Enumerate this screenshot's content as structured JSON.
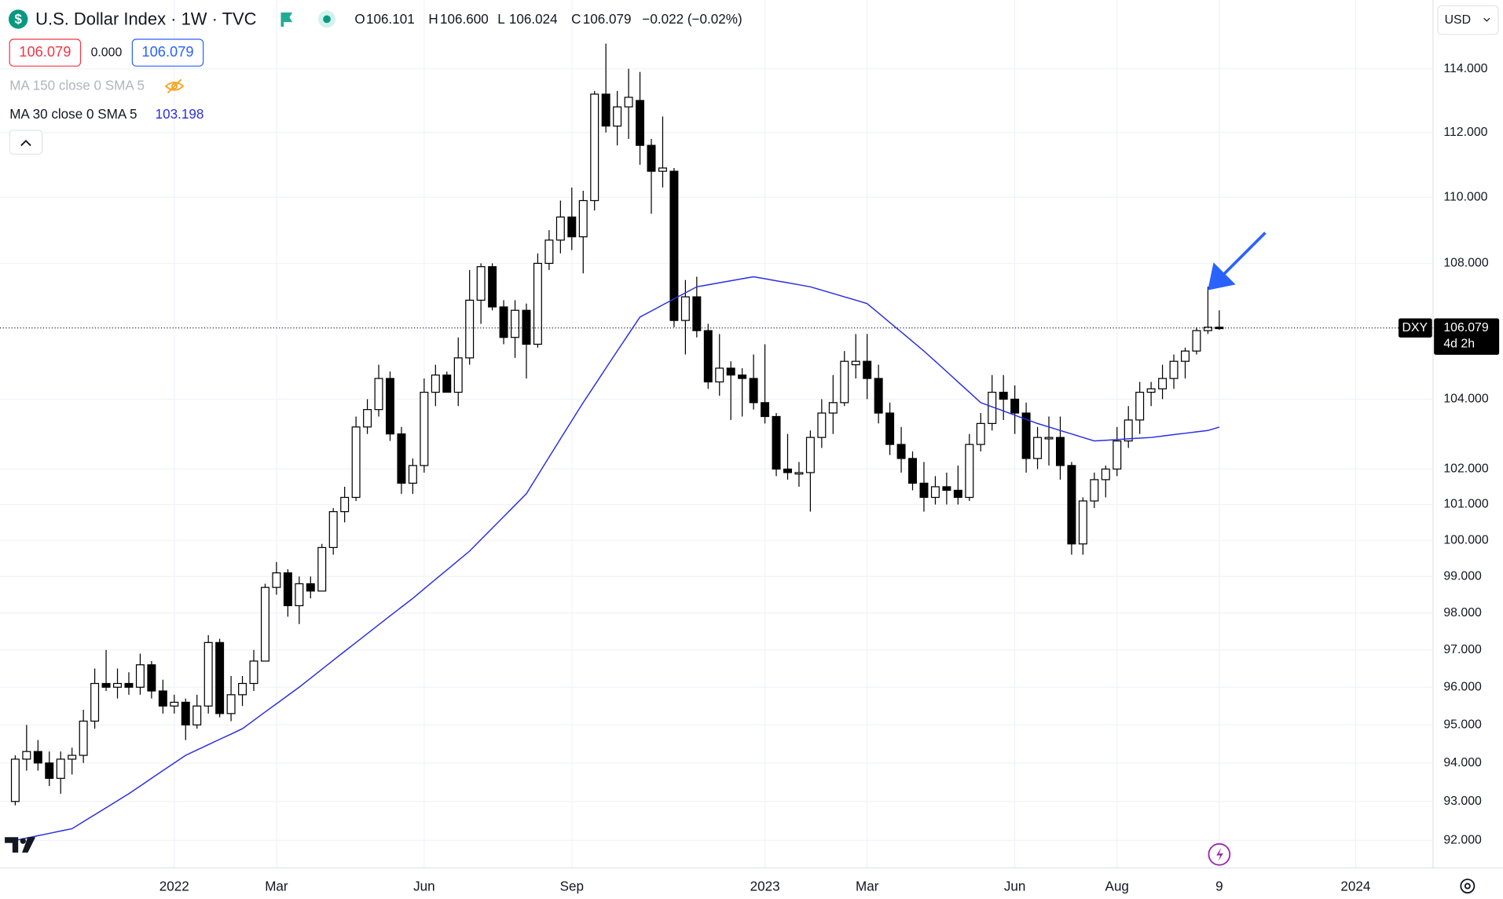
{
  "header": {
    "title": "U.S. Dollar Index · 1W · TVC",
    "ohlc": [
      [
        "O",
        "106.101"
      ],
      [
        "H",
        "106.600"
      ],
      [
        "L",
        "106.024"
      ],
      [
        "C",
        "106.079"
      ]
    ],
    "change": "−0.022 (−0.02%)",
    "bid": "106.079",
    "spread": "0.000",
    "ask": "106.079",
    "hidden_indicator": "MA 150 close 0 SMA 5",
    "currency": "USD",
    "symbol": "DXY",
    "countdown": "4d 2h"
  },
  "chart_data": {
    "type": "candlestick",
    "log_scale": true,
    "grid": true,
    "up_color": "#ffffff",
    "down_color": "#000000",
    "categories": [
      null,
      null,
      null,
      null,
      null,
      null,
      null,
      null,
      null,
      null,
      null,
      null,
      null,
      null,
      "2022",
      null,
      null,
      null,
      null,
      null,
      null,
      null,
      null,
      "Mar",
      null,
      null,
      null,
      null,
      null,
      null,
      null,
      null,
      null,
      null,
      null,
      null,
      "Jun",
      null,
      null,
      null,
      null,
      null,
      null,
      null,
      null,
      null,
      null,
      null,
      null,
      "Sep",
      null,
      null,
      null,
      null,
      null,
      null,
      null,
      null,
      null,
      null,
      null,
      null,
      null,
      null,
      null,
      null,
      "2023",
      null,
      null,
      null,
      null,
      null,
      null,
      null,
      null,
      "Mar",
      null,
      null,
      null,
      null,
      null,
      null,
      null,
      null,
      null,
      null,
      null,
      null,
      "Jun",
      null,
      null,
      null,
      null,
      null,
      null,
      null,
      null,
      "Aug",
      null,
      null,
      null,
      null,
      null,
      null,
      null,
      null,
      "9",
      null,
      null,
      null,
      null,
      null,
      null,
      null,
      null,
      null,
      null,
      null,
      "2024"
    ],
    "open": [
      93.0,
      94.1,
      94.3,
      94.0,
      93.6,
      94.1,
      94.2,
      95.1,
      96.1,
      96.0,
      96.1,
      96.0,
      96.6,
      95.9,
      95.5,
      95.6,
      95.0,
      95.5,
      97.2,
      95.3,
      95.8,
      96.1,
      96.7,
      98.7,
      99.1,
      98.2,
      98.8,
      98.6,
      99.8,
      100.8,
      101.2,
      103.2,
      103.7,
      104.6,
      103.0,
      101.6,
      102.1,
      104.2,
      104.7,
      104.2,
      105.2,
      106.9,
      107.9,
      106.7,
      105.8,
      106.6,
      105.6,
      108.0,
      108.7,
      109.4,
      108.8,
      109.9,
      113.2,
      112.2,
      112.8,
      113.0,
      111.6,
      110.8,
      110.8,
      106.3,
      107.0,
      106.0,
      104.5,
      104.9,
      104.7,
      104.6,
      103.9,
      103.5,
      102.0,
      101.9,
      101.9,
      102.9,
      103.6,
      103.9,
      105.0,
      105.1,
      104.6,
      103.6,
      102.7,
      102.3,
      101.6,
      101.2,
      101.5,
      101.4,
      101.2,
      102.7,
      103.3,
      104.2,
      104.0,
      103.6,
      102.3,
      102.9,
      102.9,
      102.1,
      99.9,
      101.1,
      101.7,
      102.0,
      102.8,
      103.4,
      104.2,
      104.3,
      104.6,
      105.1,
      105.4,
      106.0,
      106.101,
      null,
      null,
      null,
      null,
      null,
      null,
      null,
      null,
      null,
      null,
      null,
      null
    ],
    "high": [
      94.2,
      95.0,
      94.6,
      94.3,
      94.3,
      94.4,
      95.4,
      96.5,
      97.0,
      96.5,
      96.4,
      96.9,
      96.7,
      96.2,
      95.8,
      95.7,
      95.8,
      97.4,
      97.3,
      96.3,
      96.3,
      97.0,
      98.8,
      99.4,
      99.2,
      99.0,
      99.0,
      99.9,
      100.9,
      101.5,
      103.5,
      104.0,
      105.0,
      104.8,
      103.2,
      102.3,
      104.6,
      105.0,
      104.8,
      105.8,
      107.8,
      108.0,
      108.0,
      106.9,
      106.9,
      106.8,
      108.3,
      109.0,
      109.9,
      110.3,
      110.2,
      113.3,
      114.8,
      113.3,
      114.0,
      113.9,
      111.8,
      112.5,
      110.9,
      107.5,
      107.6,
      106.2,
      105.9,
      105.1,
      104.9,
      105.3,
      105.6,
      103.6,
      103.0,
      102.2,
      103.1,
      104.0,
      104.7,
      105.4,
      105.9,
      105.9,
      105.0,
      103.9,
      103.2,
      102.5,
      102.2,
      101.8,
      101.9,
      102.1,
      103.0,
      103.6,
      104.7,
      104.7,
      104.4,
      103.9,
      103.2,
      103.5,
      103.5,
      102.2,
      101.2,
      101.9,
      102.1,
      103.2,
      103.8,
      104.5,
      104.5,
      105.0,
      105.3,
      105.5,
      106.1,
      107.3,
      106.6,
      null,
      null,
      null,
      null,
      null,
      null,
      null,
      null,
      null,
      null,
      null,
      null
    ],
    "low": [
      92.9,
      93.8,
      93.8,
      93.4,
      93.2,
      93.7,
      94.0,
      94.9,
      95.9,
      95.7,
      95.8,
      95.8,
      95.7,
      95.3,
      95.3,
      94.6,
      94.9,
      95.3,
      95.2,
      95.1,
      95.5,
      95.9,
      96.7,
      98.5,
      97.9,
      97.7,
      98.4,
      98.6,
      99.6,
      100.5,
      101.1,
      103.0,
      103.5,
      102.8,
      101.3,
      101.3,
      101.9,
      103.8,
      104.2,
      103.8,
      105.0,
      106.2,
      106.6,
      105.6,
      105.2,
      104.6,
      105.5,
      107.8,
      108.3,
      108.4,
      107.7,
      109.6,
      112.0,
      111.6,
      111.8,
      111.0,
      109.5,
      110.3,
      106.1,
      105.3,
      105.8,
      104.3,
      104.1,
      103.4,
      103.5,
      103.7,
      103.3,
      101.8,
      101.7,
      101.5,
      100.8,
      102.6,
      103.0,
      103.8,
      104.6,
      104.0,
      103.3,
      102.4,
      101.9,
      101.4,
      100.8,
      101.0,
      101.0,
      101.0,
      101.1,
      102.5,
      103.1,
      103.4,
      103.0,
      101.9,
      102.0,
      102.1,
      101.7,
      99.6,
      99.6,
      100.9,
      101.2,
      101.8,
      102.6,
      103.0,
      103.8,
      104.0,
      104.3,
      104.6,
      105.3,
      105.9,
      106.024,
      null,
      null,
      null,
      null,
      null,
      null,
      null,
      null,
      null,
      null,
      null,
      null
    ],
    "close": [
      94.1,
      94.3,
      94.0,
      93.6,
      94.1,
      94.2,
      95.1,
      96.1,
      96.0,
      96.1,
      96.0,
      96.6,
      95.9,
      95.5,
      95.6,
      95.0,
      95.5,
      97.2,
      95.3,
      95.8,
      96.1,
      96.7,
      98.7,
      99.1,
      98.2,
      98.8,
      98.6,
      99.8,
      100.8,
      101.2,
      103.2,
      103.7,
      104.6,
      103.0,
      101.6,
      102.1,
      104.2,
      104.7,
      104.2,
      105.2,
      106.9,
      107.9,
      106.7,
      105.8,
      106.6,
      105.6,
      108.0,
      108.7,
      109.4,
      108.8,
      109.9,
      113.2,
      112.2,
      112.8,
      113.1,
      111.6,
      110.8,
      110.9,
      106.3,
      107.0,
      106.0,
      104.5,
      104.9,
      104.7,
      104.6,
      103.9,
      103.5,
      102.0,
      101.9,
      101.9,
      102.9,
      103.6,
      103.9,
      105.1,
      105.1,
      104.6,
      103.6,
      102.7,
      102.3,
      101.6,
      101.2,
      101.5,
      101.4,
      101.2,
      102.7,
      103.3,
      104.2,
      104.0,
      103.6,
      102.3,
      102.9,
      102.9,
      102.1,
      99.9,
      101.1,
      101.7,
      102.0,
      102.8,
      103.4,
      104.2,
      104.3,
      104.6,
      105.1,
      105.4,
      106.0,
      106.1,
      106.079,
      null,
      null,
      null,
      null,
      null,
      null,
      null,
      null,
      null,
      null,
      null,
      null
    ],
    "series": [
      {
        "name": "MA 30 close 0 SMA 5",
        "color": "#2a2ee0",
        "values": [
          92.0,
          92.06,
          92.12,
          92.18,
          92.24,
          92.3,
          92.48,
          92.66,
          92.84,
          93.02,
          93.2,
          93.4,
          93.6,
          93.8,
          94.0,
          94.2,
          94.34,
          94.48,
          94.62,
          94.76,
          94.9,
          95.12,
          95.34,
          95.56,
          95.78,
          96.0,
          96.24,
          96.48,
          96.72,
          96.96,
          97.2,
          97.44,
          97.68,
          97.92,
          98.16,
          98.4,
          98.66,
          98.92,
          99.18,
          99.44,
          99.7,
          100.02,
          100.34,
          100.66,
          100.98,
          101.3,
          101.82,
          102.34,
          102.86,
          103.38,
          103.9,
          104.4,
          104.9,
          105.4,
          105.9,
          106.4,
          106.58,
          106.76,
          106.94,
          107.12,
          107.3,
          107.36,
          107.42,
          107.48,
          107.54,
          107.6,
          107.54,
          107.48,
          107.42,
          107.36,
          107.3,
          107.2,
          107.1,
          107.0,
          106.9,
          106.8,
          106.52,
          106.24,
          105.96,
          105.68,
          105.4,
          105.1,
          104.8,
          104.5,
          104.2,
          103.9,
          103.78,
          103.66,
          103.54,
          103.42,
          103.3,
          103.2,
          103.1,
          103.0,
          102.9,
          102.8,
          102.82,
          102.84,
          102.86,
          102.88,
          102.9,
          102.94,
          102.98,
          103.02,
          103.06,
          103.1,
          103.198,
          null,
          null,
          null,
          null,
          null,
          null,
          null,
          null,
          null,
          null,
          null,
          null
        ]
      }
    ],
    "ylim": [
      91.3,
      116.2
    ],
    "yticks": [
      {
        "value": 92,
        "label": "92.000"
      },
      {
        "value": 93,
        "label": "93.000"
      },
      {
        "value": 94,
        "label": "94.000"
      },
      {
        "value": 95,
        "label": "95.000"
      },
      {
        "value": 96,
        "label": "96.000"
      },
      {
        "value": 97,
        "label": "97.000"
      },
      {
        "value": 98,
        "label": "98.000"
      },
      {
        "value": 99,
        "label": "99.000"
      },
      {
        "value": 100,
        "label": "100.000"
      },
      {
        "value": 101,
        "label": "101.000"
      },
      {
        "value": 102,
        "label": "102.000"
      },
      {
        "value": 104,
        "label": "104.000"
      },
      {
        "value": 108,
        "label": "108.000"
      },
      {
        "value": 110,
        "label": "110.000"
      },
      {
        "value": 112,
        "label": "112.000"
      },
      {
        "value": 114,
        "label": "114.000"
      }
    ]
  }
}
